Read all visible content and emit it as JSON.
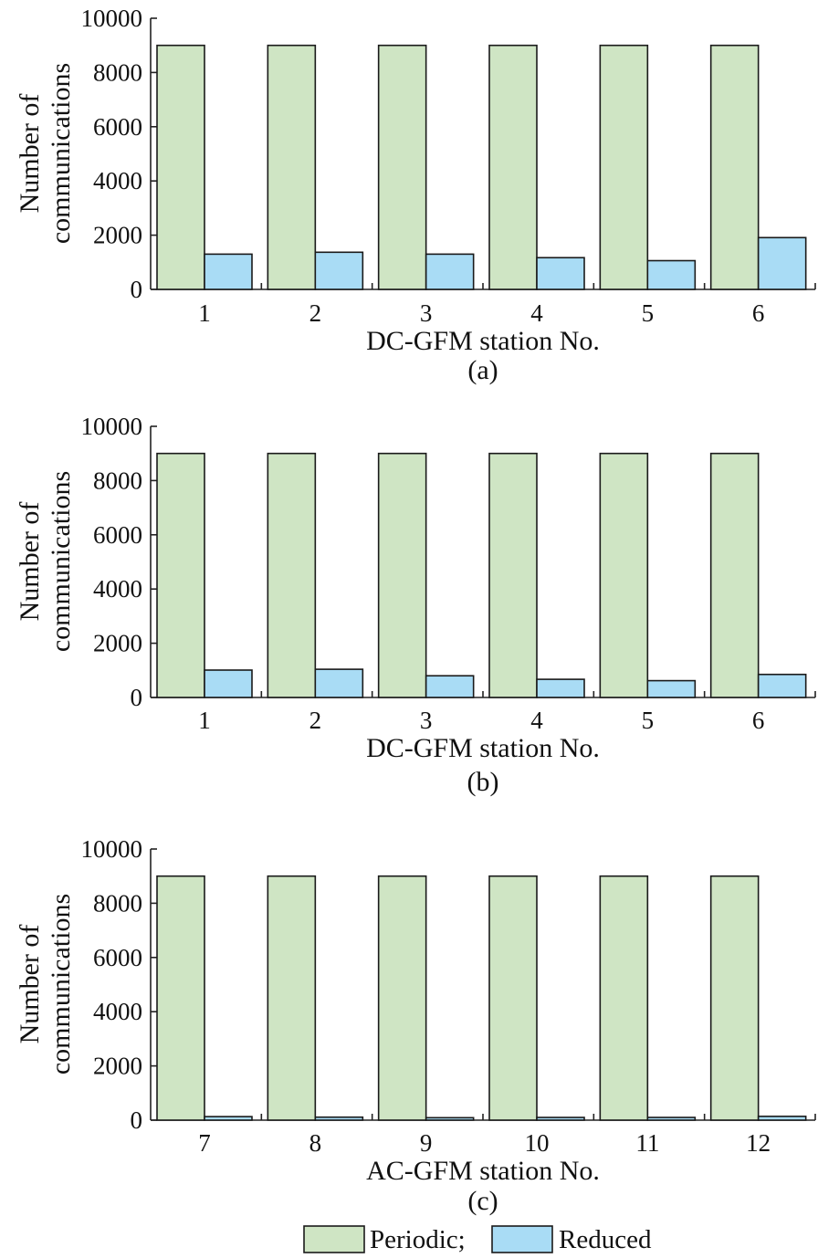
{
  "colors": {
    "periodic": "#cfe5c4",
    "reduced": "#a9dcf5"
  },
  "legend": {
    "periodic": "Periodic;",
    "reduced": "Reduced"
  },
  "chart_data": [
    {
      "type": "bar",
      "panel": "(a)",
      "xlabel": "DC-GFM station No.",
      "ylabel": [
        "Number of",
        "communications"
      ],
      "ylim": [
        0,
        10000
      ],
      "yticks": [
        "0",
        "2000",
        "4000",
        "6000",
        "8000",
        "10000"
      ],
      "categories": [
        "1",
        "2",
        "3",
        "4",
        "5",
        "6"
      ],
      "series": [
        {
          "name": "Periodic",
          "values": [
            9000,
            9000,
            9000,
            9000,
            9000,
            9000
          ]
        },
        {
          "name": "Reduced",
          "values": [
            1300,
            1370,
            1300,
            1170,
            1060,
            1910
          ]
        }
      ]
    },
    {
      "type": "bar",
      "panel": "(b)",
      "xlabel": "DC-GFM station No.",
      "ylabel": [
        "Number of",
        "communications"
      ],
      "ylim": [
        0,
        10000
      ],
      "yticks": [
        "0",
        "2000",
        "4000",
        "6000",
        "8000",
        "10000"
      ],
      "categories": [
        "1",
        "2",
        "3",
        "4",
        "5",
        "6"
      ],
      "series": [
        {
          "name": "Periodic",
          "values": [
            9000,
            9000,
            9000,
            9000,
            9000,
            9000
          ]
        },
        {
          "name": "Reduced",
          "values": [
            1010,
            1040,
            800,
            670,
            620,
            850
          ]
        }
      ]
    },
    {
      "type": "bar",
      "panel": "(c)",
      "xlabel": "AC-GFM station No.",
      "ylabel": [
        "Number of",
        "communications"
      ],
      "ylim": [
        0,
        10000
      ],
      "yticks": [
        "0",
        "2000",
        "4000",
        "6000",
        "8000",
        "10000"
      ],
      "categories": [
        "7",
        "8",
        "9",
        "10",
        "11",
        "12"
      ],
      "series": [
        {
          "name": "Periodic",
          "values": [
            9000,
            9000,
            9000,
            9000,
            9000,
            9000
          ]
        },
        {
          "name": "Reduced",
          "values": [
            130,
            110,
            90,
            100,
            100,
            140
          ]
        }
      ]
    }
  ]
}
